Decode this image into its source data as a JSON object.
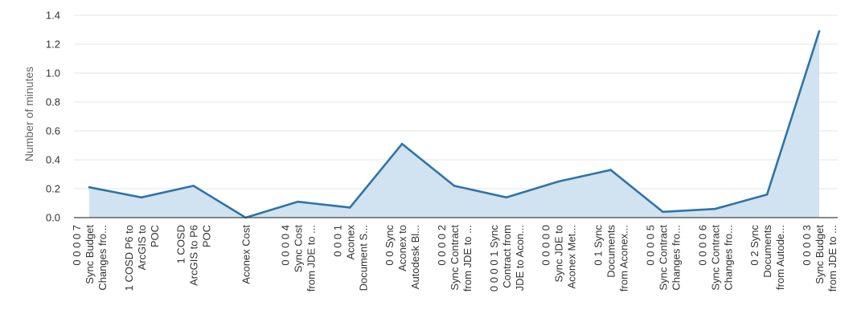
{
  "chart_data": {
    "type": "area",
    "title": "",
    "xlabel": "",
    "ylabel": "Number of minutes",
    "ylim": [
      0,
      1.4
    ],
    "yticks": [
      "0.0",
      "0.2",
      "0.4",
      "0.6",
      "0.8",
      "1.0",
      "1.2",
      "1.4"
    ],
    "grid": true,
    "colors": {
      "line": "#2f74a8",
      "fill": "#cfe1ef"
    },
    "categories": [
      [
        "0 0 0 0 7",
        "Sync Budget",
        "Changes fro..."
      ],
      [
        "1 COSD P6 to",
        "ArcGIS to",
        "POC"
      ],
      [
        "1 COSD",
        "ArcGIS to P6",
        "POC"
      ],
      [
        "Aconex Cost"
      ],
      [
        "0 0 0 0 4",
        "Sync Cost",
        "from JDE to ..."
      ],
      [
        "0 0 0 1",
        "Aconex",
        "Document S..."
      ],
      [
        "0 0 Sync",
        "Aconex to",
        "Autodesk Bl..."
      ],
      [
        "0 0 0 0 2",
        "Sync Contract",
        "from JDE to ..."
      ],
      [
        "0 0 0 0 1 Sync",
        "Contract from",
        "JDE to Acon..."
      ],
      [
        "0 0 0 0 0",
        "Sync JDE to",
        "Aconex Met..."
      ],
      [
        "0 1 Sync",
        "Documents",
        "from Aconex..."
      ],
      [
        "0 0 0 0 5",
        "Sync Contract",
        "Changes fro..."
      ],
      [
        "0 0 0 0 6",
        "Sync Contract",
        "Changes fro..."
      ],
      [
        "0 2 Sync",
        "Documents",
        "from Autode..."
      ],
      [
        "0 0 0 0 3",
        "Sync Budget",
        "from JDE to ..."
      ]
    ],
    "series": [
      {
        "values": [
          0.21,
          0.14,
          0.22,
          0.0,
          0.11,
          0.07,
          0.51,
          0.22,
          0.14,
          0.25,
          0.33,
          0.04,
          0.06,
          0.16,
          1.29
        ]
      }
    ]
  }
}
